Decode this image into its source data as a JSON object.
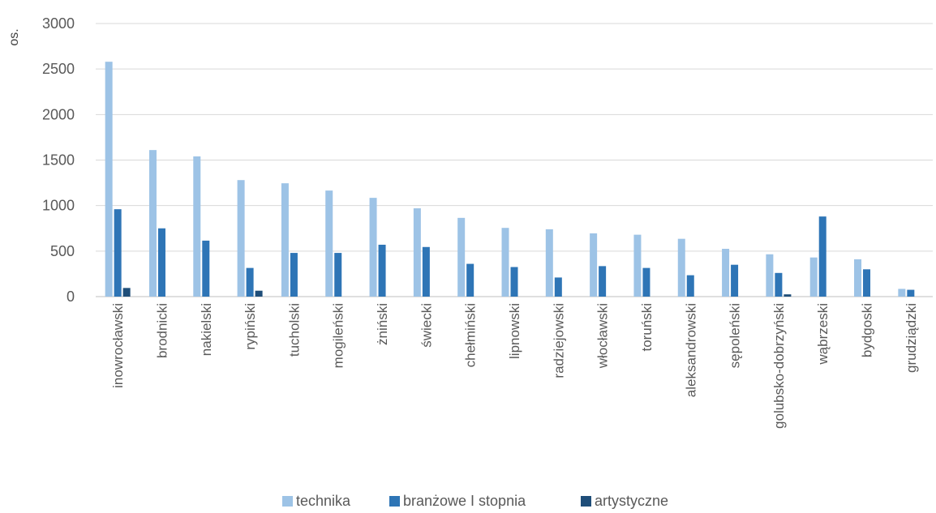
{
  "chart_data": {
    "type": "bar",
    "ylabel": "os.",
    "xlabel": "",
    "ylim": [
      0,
      3000
    ],
    "yticks": [
      "0",
      "500",
      "1000",
      "1500",
      "2000",
      "2500",
      "3000"
    ],
    "grid": true,
    "legend_position": "bottom",
    "categories": [
      "inowrocławski",
      "brodnicki",
      "nakielski",
      "rypiński",
      "tucholski",
      "mogileński",
      "żniński",
      "świecki",
      "chełmiński",
      "lipnowski",
      "radziejowski",
      "włocławski",
      "toruński",
      "aleksandrowski",
      "sępoleński",
      "golubsko-dobrzyński",
      "wąbrzeski",
      "bydgoski",
      "grudziądzki"
    ],
    "series": [
      {
        "name": "technika",
        "color": "#9dc3e6",
        "values": [
          2580,
          1610,
          1540,
          1280,
          1245,
          1165,
          1085,
          970,
          865,
          755,
          740,
          695,
          680,
          635,
          525,
          465,
          430,
          410,
          85
        ]
      },
      {
        "name": "branżowe I stopnia",
        "color": "#2e75b6",
        "values": [
          960,
          750,
          615,
          315,
          480,
          480,
          570,
          545,
          360,
          325,
          210,
          335,
          315,
          235,
          350,
          260,
          880,
          300,
          75
        ]
      },
      {
        "name": "artystyczne",
        "color": "#1f4e79",
        "values": [
          95,
          0,
          0,
          65,
          0,
          0,
          0,
          0,
          0,
          0,
          0,
          0,
          0,
          0,
          0,
          25,
          0,
          0,
          0
        ]
      }
    ]
  }
}
